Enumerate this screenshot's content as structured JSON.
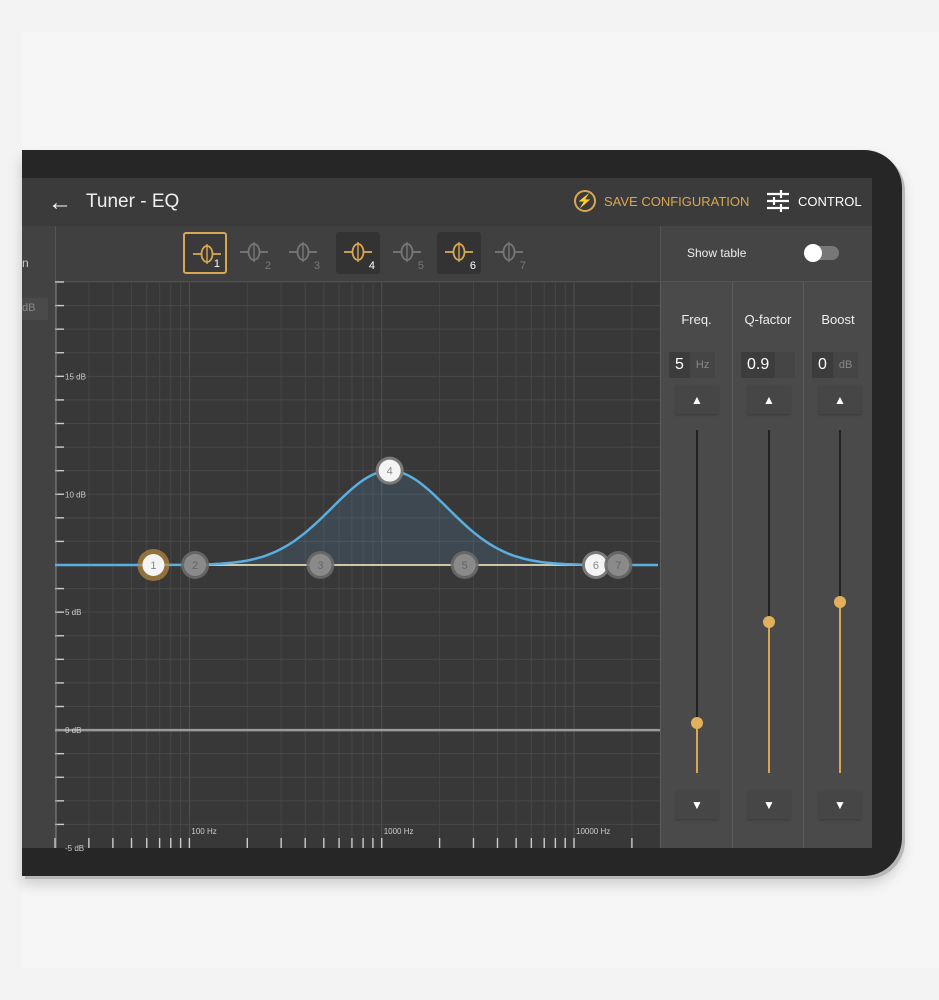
{
  "header": {
    "title": "Tuner - EQ",
    "back_icon": "arrow-left-icon",
    "save_label": "SAVE CONFIGURATION",
    "save_icon": "bolt-refresh-icon",
    "control_label": "CONTROL",
    "control_icon": "sliders-icon"
  },
  "colors": {
    "accent": "#d9a752",
    "curve": "#5aaee0",
    "background": "#3a3a3a"
  },
  "left_panel": {
    "label_fragment": "n",
    "unit_fragment": "dB"
  },
  "bands": [
    {
      "n": "1",
      "state": "selected"
    },
    {
      "n": "2",
      "state": "off"
    },
    {
      "n": "3",
      "state": "off"
    },
    {
      "n": "4",
      "state": "on"
    },
    {
      "n": "5",
      "state": "off"
    },
    {
      "n": "6",
      "state": "on"
    },
    {
      "n": "7",
      "state": "off"
    }
  ],
  "show_table": {
    "label": "Show table",
    "enabled": false
  },
  "controls": [
    {
      "label": "Freq.",
      "value": "5",
      "unit": "Hz",
      "level": 0.145
    },
    {
      "label": "Q-factor",
      "value": "0.9",
      "unit": "",
      "level": 0.44
    },
    {
      "label": "Boost",
      "value": "0",
      "unit": "dB",
      "level": 0.5
    }
  ],
  "eq_chart": {
    "x_scale": "log",
    "x_range": [
      20,
      28000
    ],
    "y_range": [
      -5,
      19
    ],
    "y_ticks": [
      {
        "v": 15,
        "label": "15 dB"
      },
      {
        "v": 10,
        "label": "10 dB"
      },
      {
        "v": 5,
        "label": "5 dB"
      },
      {
        "v": 0,
        "label": "0 dB"
      },
      {
        "v": -5,
        "label": "-5 dB"
      }
    ],
    "x_ticks": [
      {
        "v": 100,
        "label": "100 Hz"
      },
      {
        "v": 1000,
        "label": "1000 Hz"
      },
      {
        "v": 10000,
        "label": "10000 Hz"
      }
    ],
    "baseline_db": 7,
    "nodes": [
      {
        "n": "1",
        "freq": 65,
        "gain": 7,
        "state": "selected"
      },
      {
        "n": "2",
        "freq": 107,
        "gain": 7,
        "state": "off"
      },
      {
        "n": "3",
        "freq": 480,
        "gain": 7,
        "state": "off"
      },
      {
        "n": "4",
        "freq": 1100,
        "gain": 11,
        "state": "on"
      },
      {
        "n": "5",
        "freq": 2700,
        "gain": 7,
        "state": "off"
      },
      {
        "n": "6",
        "freq": 13000,
        "gain": 7,
        "state": "on"
      },
      {
        "n": "7",
        "freq": 17000,
        "gain": 7,
        "state": "off"
      }
    ]
  }
}
